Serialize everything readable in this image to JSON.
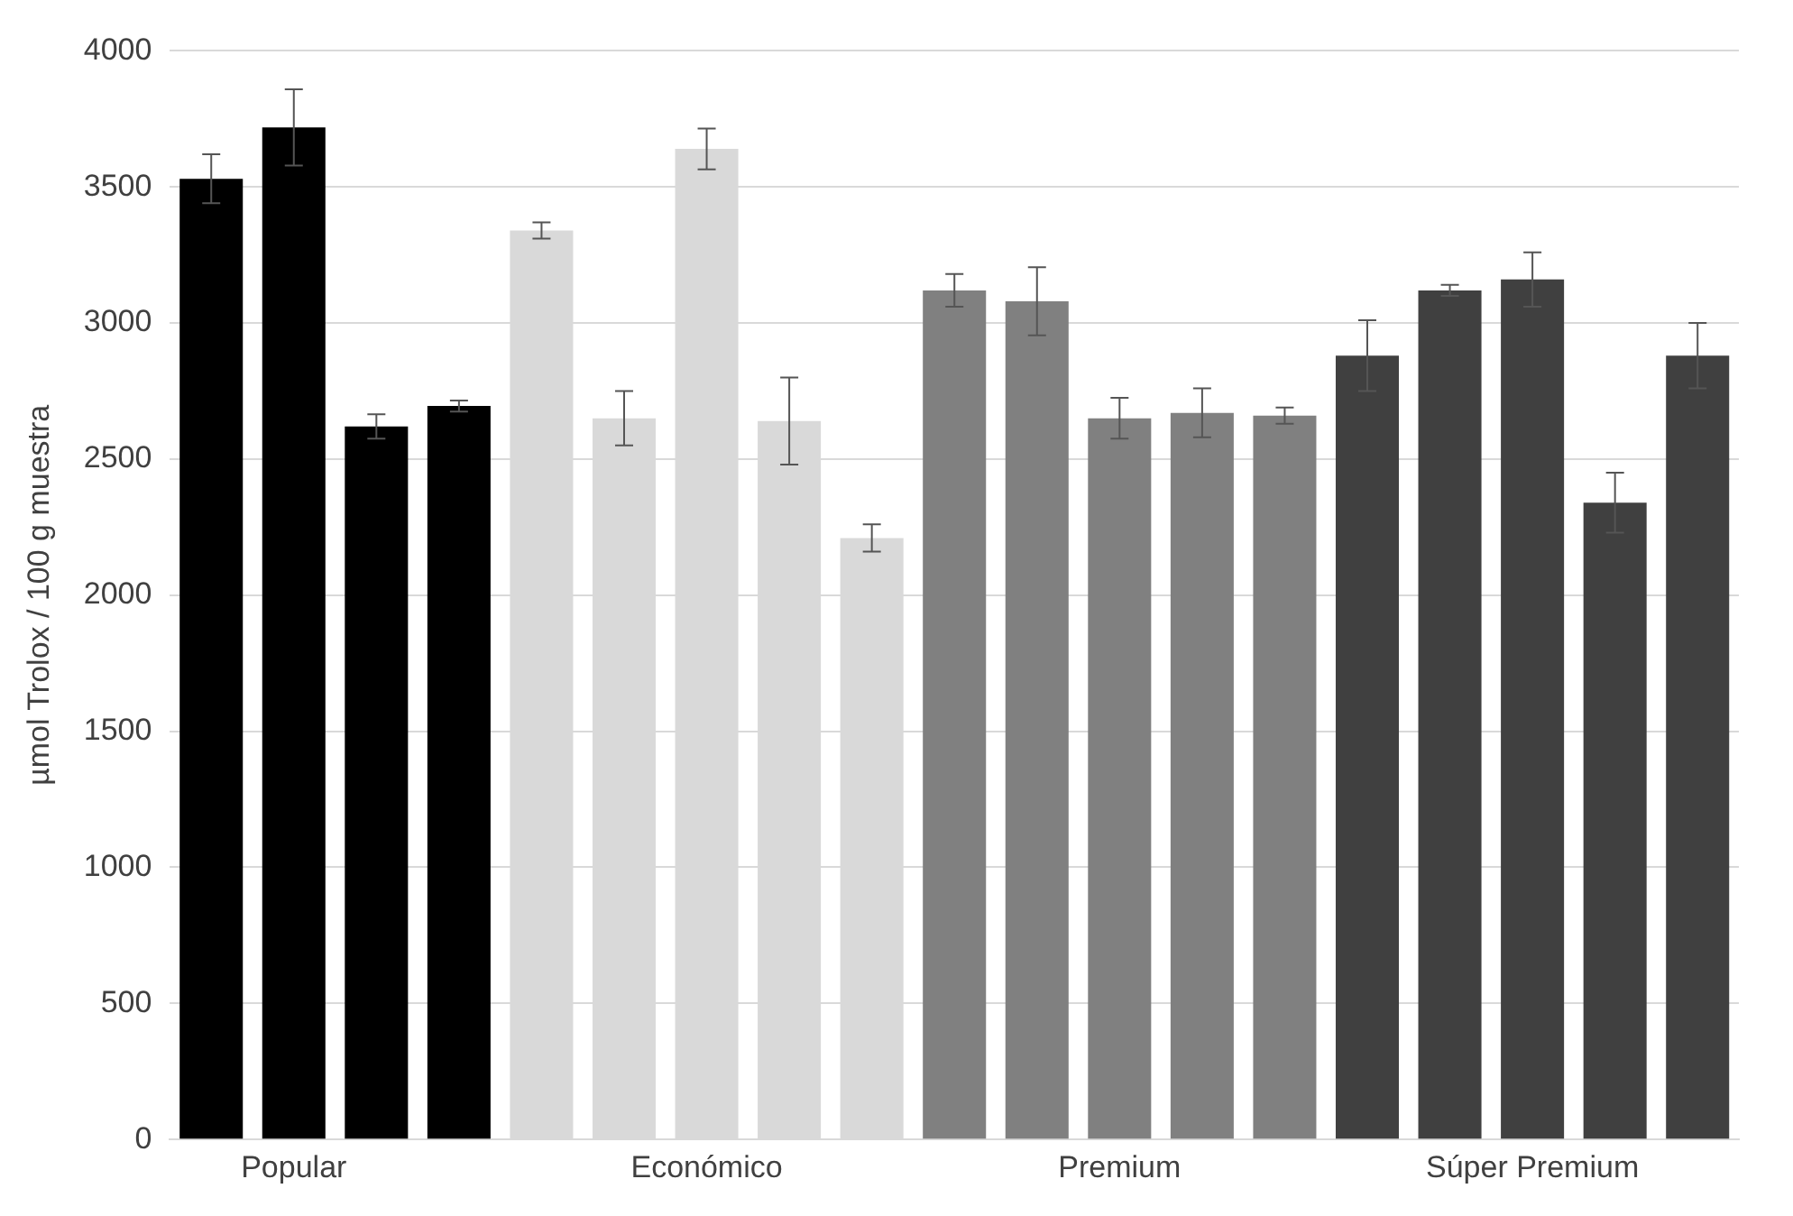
{
  "chart_data": {
    "type": "bar",
    "ylabel": "µmol Trolox / 100 g muestra",
    "categories": [
      null,
      "Popular",
      null,
      null,
      null,
      null,
      "Económico",
      null,
      null,
      null,
      null,
      "Premium",
      null,
      null,
      null,
      null,
      "Súper Premium",
      null,
      null
    ],
    "values": [
      3530,
      3719,
      2620,
      2695,
      3340,
      2650,
      3640,
      2640,
      2210,
      3120,
      3080,
      2650,
      2670,
      2660,
      2880,
      3120,
      3160,
      2340,
      2880
    ],
    "errors": [
      90,
      140,
      45,
      20,
      30,
      100,
      75,
      160,
      50,
      60,
      125,
      75,
      90,
      30,
      130,
      20,
      100,
      110,
      120
    ],
    "colors": [
      "#000000",
      "#000000",
      "#000000",
      "#000000",
      "#d9d9d9",
      "#d9d9d9",
      "#d9d9d9",
      "#d9d9d9",
      "#d9d9d9",
      "#808080",
      "#808080",
      "#808080",
      "#808080",
      "#808080",
      "#404040",
      "#404040",
      "#404040",
      "#404040",
      "#404040"
    ],
    "ylim": [
      0,
      4000
    ],
    "yticks": [
      0,
      500,
      1000,
      1500,
      2000,
      2500,
      3000,
      3500,
      4000
    ],
    "grid": "y",
    "legend": false
  }
}
